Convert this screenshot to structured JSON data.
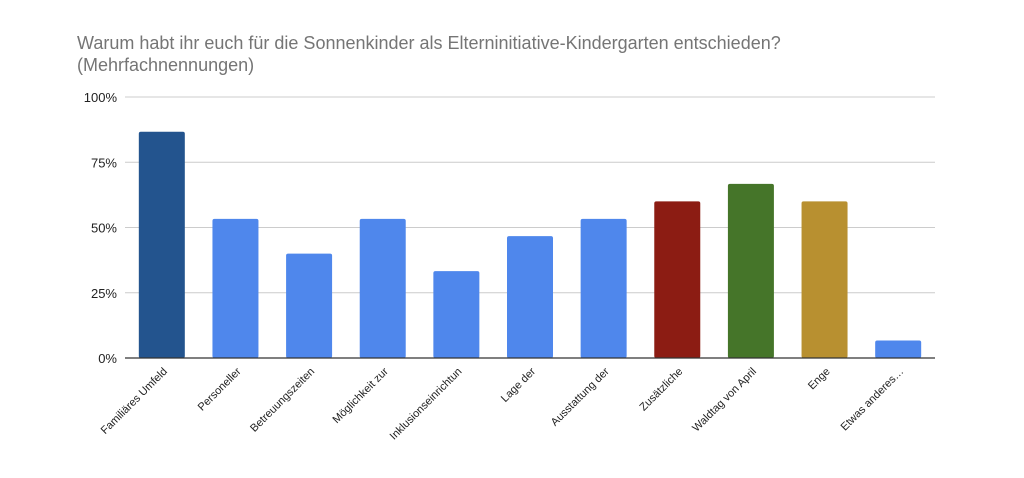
{
  "chart_data": {
    "type": "bar",
    "title": "Warum habt ihr euch für die Sonnenkinder als Elterninitiative-Kindergarten entschieden? (Mehrfachnennungen)",
    "xlabel": "",
    "ylabel": "",
    "ylim": [
      0,
      100
    ],
    "y_ticks": [
      "0%",
      "25%",
      "50%",
      "75%",
      "100%"
    ],
    "y_tick_values": [
      0,
      25,
      50,
      75,
      100
    ],
    "grid": true,
    "legend": "none",
    "categories": [
      "Familiäres Umfeld",
      "Personeller",
      "Betreuungszeiten",
      "Möglichkeit zur",
      "Inklusionseinrichtun",
      "Lage der",
      "Ausstattung der",
      "Zusätzliche",
      "Waldtag von April",
      "Enge",
      "Etwas anderes…"
    ],
    "values": [
      86.7,
      53.3,
      40.0,
      53.3,
      33.3,
      46.7,
      53.3,
      60.0,
      66.7,
      60.0,
      6.7
    ],
    "colors": [
      "#23548e",
      "#4f87ec",
      "#4f87ec",
      "#4f87ec",
      "#4f87ec",
      "#4f87ec",
      "#4f87ec",
      "#8c1c13",
      "#457529",
      "#b89030",
      "#4f87ec"
    ]
  }
}
